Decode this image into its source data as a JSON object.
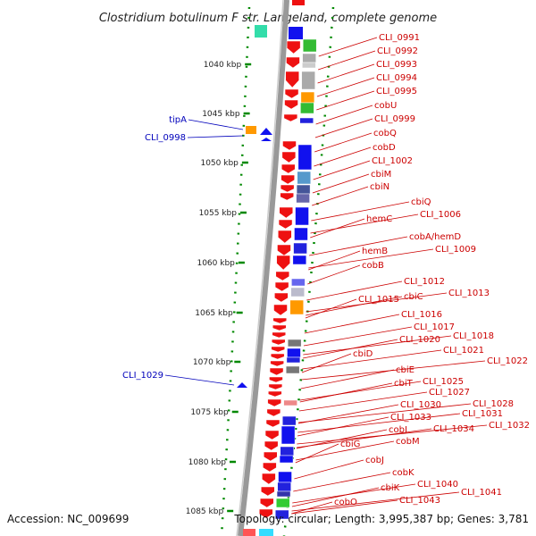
{
  "title": "Clostridium botulinum F str. Langeland, complete genome",
  "footer": {
    "accession": "Accession: NC_009699",
    "topology": "Topology: circular; Length: 3,995,387 bp; Genes: 3,781"
  },
  "colors": {
    "label_right": "#cc0000",
    "label_left": "#0000bb",
    "forward_gene": "#ee1111",
    "axis_dots": "#008800"
  },
  "kbp_ticks": [
    "1040 kbp",
    "1045 kbp",
    "1050 kbp",
    "1055 kbp",
    "1060 kbp",
    "1065 kbp",
    "1070 kbp",
    "1075 kbp",
    "1080 kbp",
    "1085 kbp"
  ],
  "left_labels": [
    "tipA",
    "CLI_0998",
    "CLI_1029"
  ],
  "right_labels": [
    "CLI_0991",
    "CLI_0992",
    "CLI_0993",
    "CLI_0994",
    "CLI_0995",
    "cobU",
    "CLI_0999",
    "cobQ",
    "cobD",
    "CLI_1002",
    "cbiM",
    "cbiN",
    "cbiQ",
    "CLI_1006",
    "hemC",
    "cobA/hemD",
    "CLI_1009",
    "hemB",
    "cobB",
    "CLI_1012",
    "CLI_1013",
    "cbiC",
    "CLI_1015",
    "CLI_1016",
    "CLI_1017",
    "CLI_1018",
    "CLI_1020",
    "CLI_1021",
    "cbiD",
    "CLI_1022",
    "cbiE",
    "CLI_1025",
    "cbiT",
    "CLI_1027",
    "CLI_1028",
    "CLI_1030",
    "CLI_1031",
    "CLI_1033",
    "CLI_1032",
    "cobI",
    "CLI_1034",
    "cbiG",
    "cobM",
    "cobJ",
    "cobK",
    "CLI_1040",
    "cbiK",
    "CLI_1041",
    "CLI_1043",
    "cobO"
  ]
}
